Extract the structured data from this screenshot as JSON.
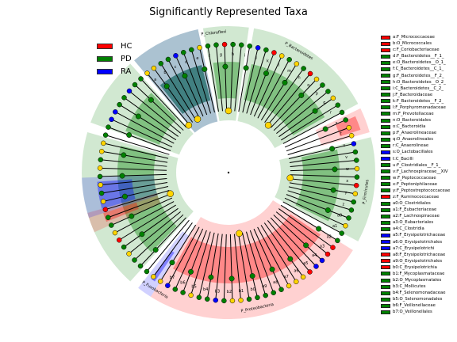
{
  "chart_data": {
    "type": "cladogram",
    "title": "Significantly Represented Taxa",
    "classes": [
      {
        "name": "HC",
        "color": "#ff0000"
      },
      {
        "name": "PD",
        "color": "#008000"
      },
      {
        "name": "RA",
        "color": "#0000ff"
      }
    ],
    "phyla": [
      {
        "name": "P_Chloroflexi",
        "from": 0,
        "to": 1
      },
      {
        "name": "P_Bacteroidetes",
        "from": 1,
        "to": 4
      },
      {
        "name": "P_Firmicutes",
        "from": 4,
        "to": 8
      },
      {
        "name": "P_Proteobacteria",
        "from": 8,
        "to": 10
      },
      {
        "name": "P_Fusobacteria",
        "from": 10,
        "to": 11
      }
    ],
    "highlighted_taxa": [
      {
        "key": "a",
        "name": "F_Micrococcaceae",
        "class": "HC"
      },
      {
        "key": "b",
        "name": "O_Micrococcales",
        "class": "HC"
      },
      {
        "key": "c",
        "name": "F_Coriobacteriaceae",
        "class": "HC"
      },
      {
        "key": "d",
        "name": "F_Bacteroidetes__F_1_",
        "class": "PD"
      },
      {
        "key": "e",
        "name": "O_Bacteroidetes__O_1_",
        "class": "PD"
      },
      {
        "key": "f",
        "name": "C_Bacteroidetes__C_1_",
        "class": "PD"
      },
      {
        "key": "g",
        "name": "F_Bacteroidetes__F_2_",
        "class": "PD"
      },
      {
        "key": "h",
        "name": "O_Bacteroidetes__O_2_",
        "class": "PD"
      },
      {
        "key": "i",
        "name": "C_Bacteroidetes__C_2_",
        "class": "PD"
      },
      {
        "key": "j",
        "name": "F_Bacteroidaceae",
        "class": "PD"
      },
      {
        "key": "k",
        "name": "F_Bacteroidetes__F_2_",
        "class": "PD"
      },
      {
        "key": "l",
        "name": "F_Porphyromonadaceae",
        "class": "PD"
      },
      {
        "key": "m",
        "name": "F_Prevotellaceae",
        "class": "PD"
      },
      {
        "key": "n",
        "name": "O_Bacteroidales",
        "class": "PD"
      },
      {
        "key": "o",
        "name": "C_Bacteroidia",
        "class": "PD"
      },
      {
        "key": "p",
        "name": "F_Anaerolineaceae",
        "class": "PD"
      },
      {
        "key": "q",
        "name": "O_Anaerolineales",
        "class": "PD"
      },
      {
        "key": "r",
        "name": "C_Anaerolineae",
        "class": "PD"
      },
      {
        "key": "s",
        "name": "O_Lactobacillales",
        "class": "RA"
      },
      {
        "key": "t",
        "name": "C_Bacilli",
        "class": "RA"
      },
      {
        "key": "u",
        "name": "F_Clostridiales__F_1_",
        "class": "PD"
      },
      {
        "key": "v",
        "name": "F_Lachnospiraceae__XIV",
        "class": "PD"
      },
      {
        "key": "w",
        "name": "F_Peptococcaceae",
        "class": "PD"
      },
      {
        "key": "x",
        "name": "F_Peptoniphilaceae",
        "class": "PD"
      },
      {
        "key": "y",
        "name": "F_Peptostreptococcaceae",
        "class": "PD"
      },
      {
        "key": "z",
        "name": "F_Ruminococcaceae",
        "class": "HC"
      },
      {
        "key": "a0",
        "name": "O_Clostridiales",
        "class": "PD"
      },
      {
        "key": "a1",
        "name": "F_Eubacteriaceae",
        "class": "PD"
      },
      {
        "key": "a2",
        "name": "F_Lachnospiraceae",
        "class": "PD"
      },
      {
        "key": "a3",
        "name": "O_Eubacteriales",
        "class": "PD"
      },
      {
        "key": "a4",
        "name": "C_Clostridia",
        "class": "PD"
      },
      {
        "key": "a5",
        "name": "F_Erysipelotrichaceae",
        "class": "RA"
      },
      {
        "key": "a6",
        "name": "O_Erysipelotrichales",
        "class": "RA"
      },
      {
        "key": "a7",
        "name": "C_Erysipelotrichi",
        "class": "RA"
      },
      {
        "key": "a8",
        "name": "F_Erysipelotrichaceae",
        "class": "HC"
      },
      {
        "key": "a9",
        "name": "O_Erysipelotrichales",
        "class": "HC"
      },
      {
        "key": "b0",
        "name": "C_Erysipelotrichia",
        "class": "HC"
      },
      {
        "key": "b1",
        "name": "F_Mycoplasmataceae",
        "class": "PD"
      },
      {
        "key": "b2",
        "name": "O_Mycoplasmatales",
        "class": "PD"
      },
      {
        "key": "b3",
        "name": "C_Mollicutes",
        "class": "PD"
      },
      {
        "key": "b4",
        "name": "F_Selenomonadaceae",
        "class": "PD"
      },
      {
        "key": "b5",
        "name": "O_Selenomonadales",
        "class": "PD"
      },
      {
        "key": "b6",
        "name": "F_Veillonellaceae",
        "class": "PD"
      },
      {
        "key": "b7",
        "name": "O_Veillonellales",
        "class": "PD"
      }
    ]
  }
}
